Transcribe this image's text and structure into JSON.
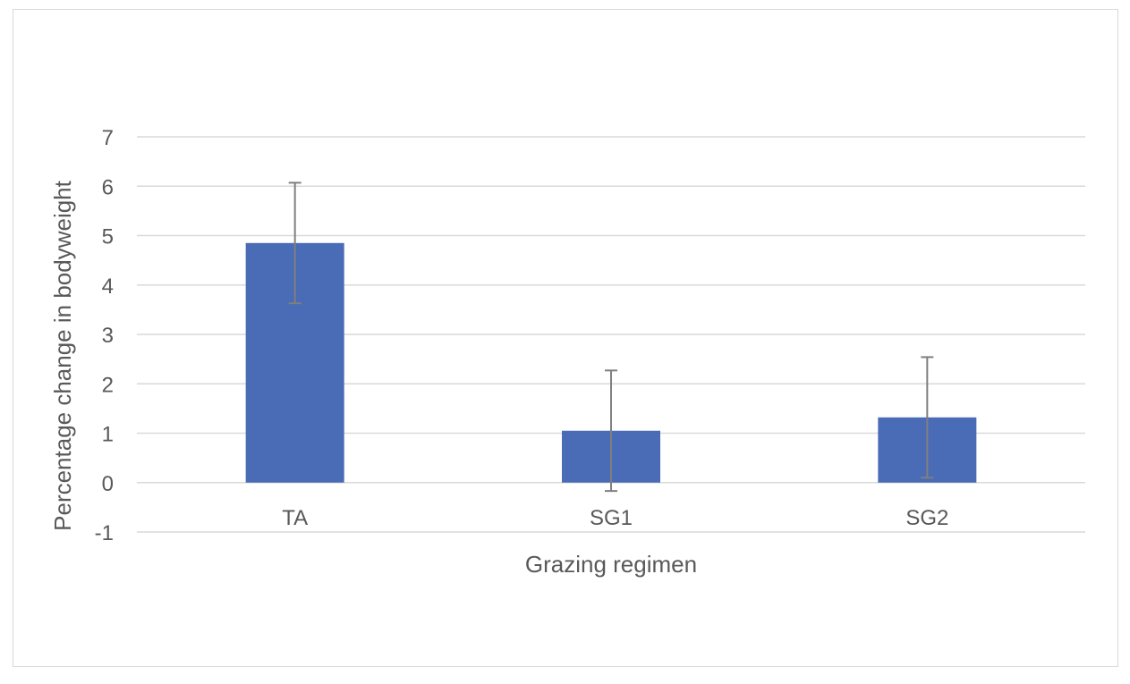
{
  "chart_data": {
    "type": "bar",
    "title": "",
    "xlabel": "Grazing regimen",
    "ylabel": "Percentage change in bodyweight",
    "categories": [
      "TA",
      "SG1",
      "SG2"
    ],
    "series": [
      {
        "values": [
          4.85,
          1.05,
          1.32
        ],
        "error": [
          1.22,
          1.22,
          1.22
        ],
        "color": "#4a6bb5"
      }
    ],
    "ylim": [
      -1,
      7
    ],
    "yticks": [
      -1,
      0,
      1,
      2,
      3,
      4,
      5,
      6,
      7
    ],
    "grid": true,
    "legend": "none",
    "gridColor": "#d9d9d9",
    "errorBarColor": "#7f7f7f"
  }
}
